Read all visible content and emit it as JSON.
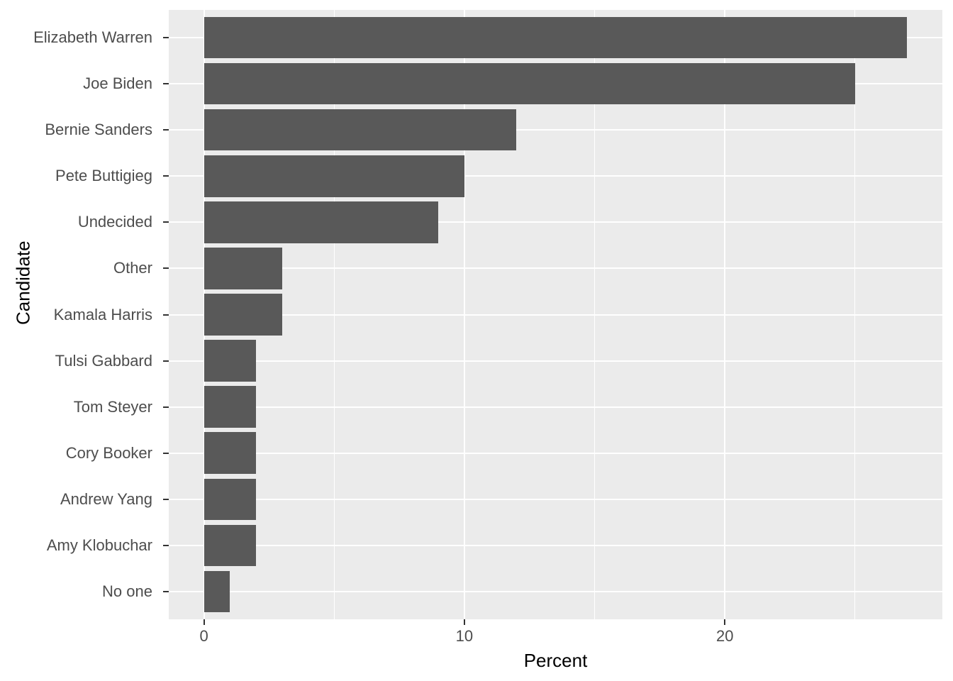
{
  "chart_data": {
    "type": "bar",
    "orientation": "horizontal",
    "title": "",
    "xlabel": "Percent",
    "ylabel": "Candidate",
    "categories": [
      "Elizabeth Warren",
      "Joe Biden",
      "Bernie Sanders",
      "Pete Buttigieg",
      "Undecided",
      "Other",
      "Kamala Harris",
      "Tulsi Gabbard",
      "Tom Steyer",
      "Cory Booker",
      "Andrew Yang",
      "Amy Klobuchar",
      "No one"
    ],
    "values": [
      27,
      25,
      12,
      10,
      9,
      3,
      3,
      2,
      2,
      2,
      2,
      2,
      1
    ],
    "xlim": [
      -1.35,
      28.35
    ],
    "x_major_ticks": [
      0,
      10,
      20
    ],
    "x_major_tick_labels": [
      "0",
      "10",
      "20"
    ],
    "x_minor_gridlines": [
      5,
      15,
      25
    ],
    "bar_width_frac": 0.9,
    "band_expand": 0.6,
    "grid": true,
    "legend": "none"
  },
  "colors": {
    "bar_fill": "#595959",
    "panel_background": "#EBEBEB",
    "gridline": "#FFFFFF",
    "axis_text": "#4D4D4D",
    "axis_title": "#000000",
    "tick_mark": "#333333",
    "figure_background": "#FFFFFF"
  }
}
